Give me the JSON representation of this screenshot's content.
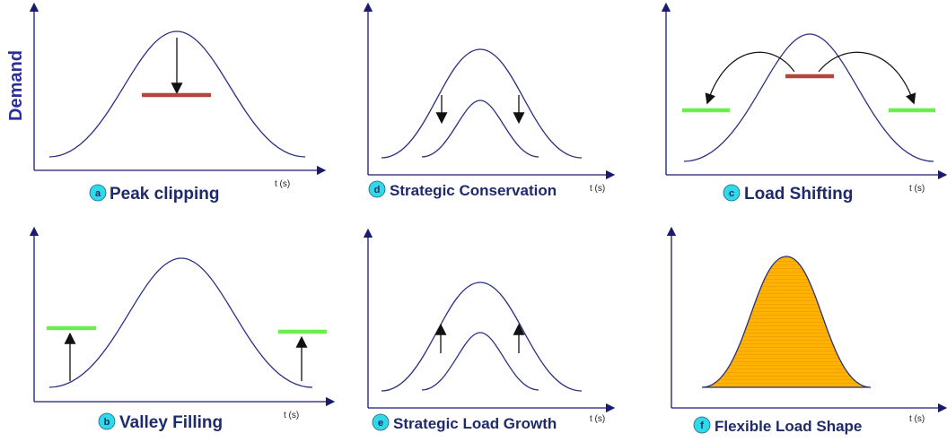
{
  "y_axis_label": "Demand",
  "colors": {
    "axis": "#1a1a6e",
    "curve": "#2a2f80",
    "red_bar": "#b5443e",
    "green_bar": "#6aee4e",
    "arrow": "#111111",
    "fill": "#ffb300",
    "badge": "#2fd9e6",
    "label": "#1f2a6b"
  },
  "panels": [
    {
      "id": "a",
      "badge": "a",
      "title": "Peak clipping",
      "time_label": "t (s)"
    },
    {
      "id": "d",
      "badge": "d",
      "title": "Strategic Conservation",
      "time_label": "t (s)"
    },
    {
      "id": "c",
      "badge": "c",
      "title": "Load Shifting",
      "time_label": "t (s)"
    },
    {
      "id": "b",
      "badge": "b",
      "title": "Valley Filling",
      "time_label": "t (s)"
    },
    {
      "id": "e",
      "badge": "e",
      "title": "Strategic Load Growth",
      "time_label": "t (s)"
    },
    {
      "id": "f",
      "badge": "f",
      "title": "Flexible Load Shape",
      "time_label": "t (s)"
    }
  ]
}
